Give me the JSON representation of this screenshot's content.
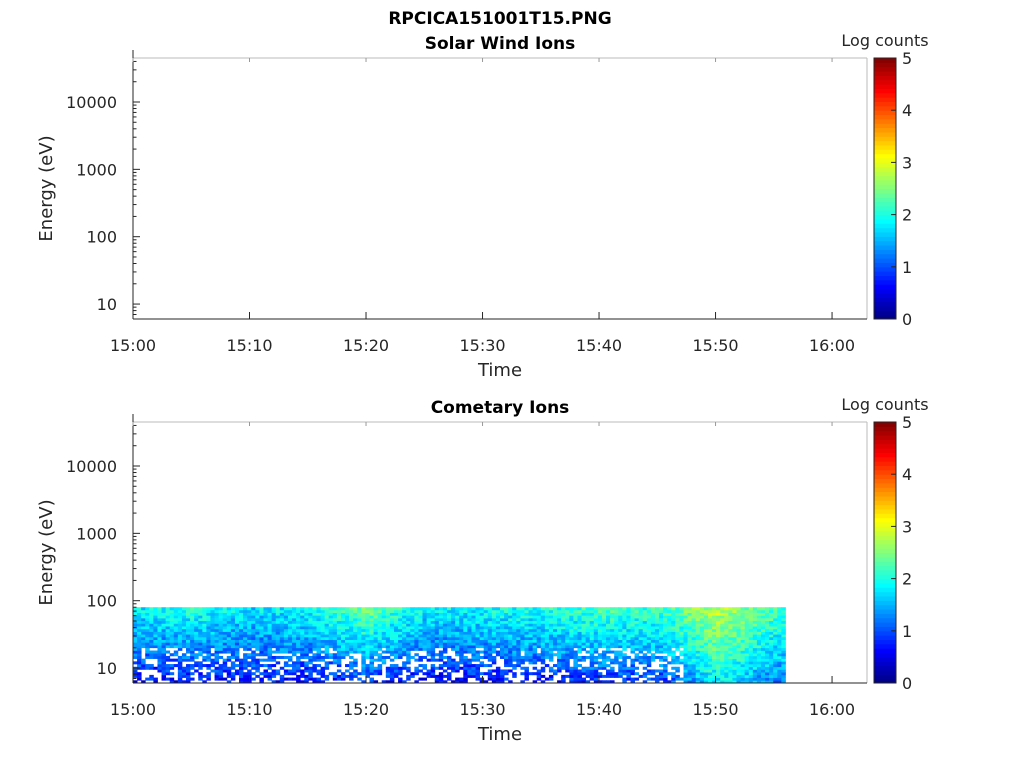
{
  "figure_title": "RPCICA151001T15.PNG",
  "chart_data": [
    {
      "type": "heatmap",
      "title": "Solar Wind Ions",
      "xlabel": "Time",
      "ylabel": "Energy (eV)",
      "y_scale": "log",
      "ylim": [
        6,
        45000
      ],
      "xlim": [
        "15:00",
        "16:03"
      ],
      "x_ticks": [
        "15:00",
        "15:10",
        "15:20",
        "15:30",
        "15:40",
        "15:50",
        "16:00"
      ],
      "y_ticks": [
        "10",
        "100",
        "1000",
        "10000"
      ],
      "colorbar": {
        "label": "Log counts",
        "ticks": [
          "0",
          "1",
          "2",
          "3",
          "4",
          "5"
        ],
        "range": [
          0,
          5
        ],
        "colormap": "jet"
      },
      "data_present": false
    },
    {
      "type": "heatmap",
      "title": "Cometary Ions",
      "xlabel": "Time",
      "ylabel": "Energy (eV)",
      "y_scale": "log",
      "ylim": [
        6,
        45000
      ],
      "xlim": [
        "15:00",
        "16:03"
      ],
      "x_ticks": [
        "15:00",
        "15:10",
        "15:20",
        "15:30",
        "15:40",
        "15:50",
        "16:00"
      ],
      "y_ticks": [
        "10",
        "100",
        "1000",
        "10000"
      ],
      "colorbar": {
        "label": "Log counts",
        "ticks": [
          "0",
          "1",
          "2",
          "3",
          "4",
          "5"
        ],
        "range": [
          0,
          5
        ],
        "colormap": "jet"
      },
      "data_present": true,
      "data_time_range": [
        "15:00",
        "15:56"
      ],
      "data_energy_range_eV": [
        6,
        80
      ],
      "notes": "Approximate log-count profile: ~1.5-2 near top energy (~60-80 eV), decreasing to ~0.5 toward 10 eV with sparse counts below; enhanced ~2.5-3 burst near 15:50-15:52.",
      "intensity_profile": [
        {
          "time": "15:00",
          "top": 1.8,
          "low": 0.6
        },
        {
          "time": "15:05",
          "top": 2.0,
          "low": 0.6
        },
        {
          "time": "15:10",
          "top": 1.7,
          "low": 0.7
        },
        {
          "time": "15:15",
          "top": 1.9,
          "low": 0.6
        },
        {
          "time": "15:20",
          "top": 2.4,
          "low": 0.8
        },
        {
          "time": "15:25",
          "top": 1.8,
          "low": 0.6
        },
        {
          "time": "15:30",
          "top": 1.9,
          "low": 0.6
        },
        {
          "time": "15:35",
          "top": 2.0,
          "low": 0.7
        },
        {
          "time": "15:40",
          "top": 2.2,
          "low": 0.8
        },
        {
          "time": "15:45",
          "top": 2.1,
          "low": 0.8
        },
        {
          "time": "15:50",
          "top": 2.8,
          "low": 1.8
        },
        {
          "time": "15:55",
          "top": 2.2,
          "low": 1.2
        }
      ]
    }
  ]
}
